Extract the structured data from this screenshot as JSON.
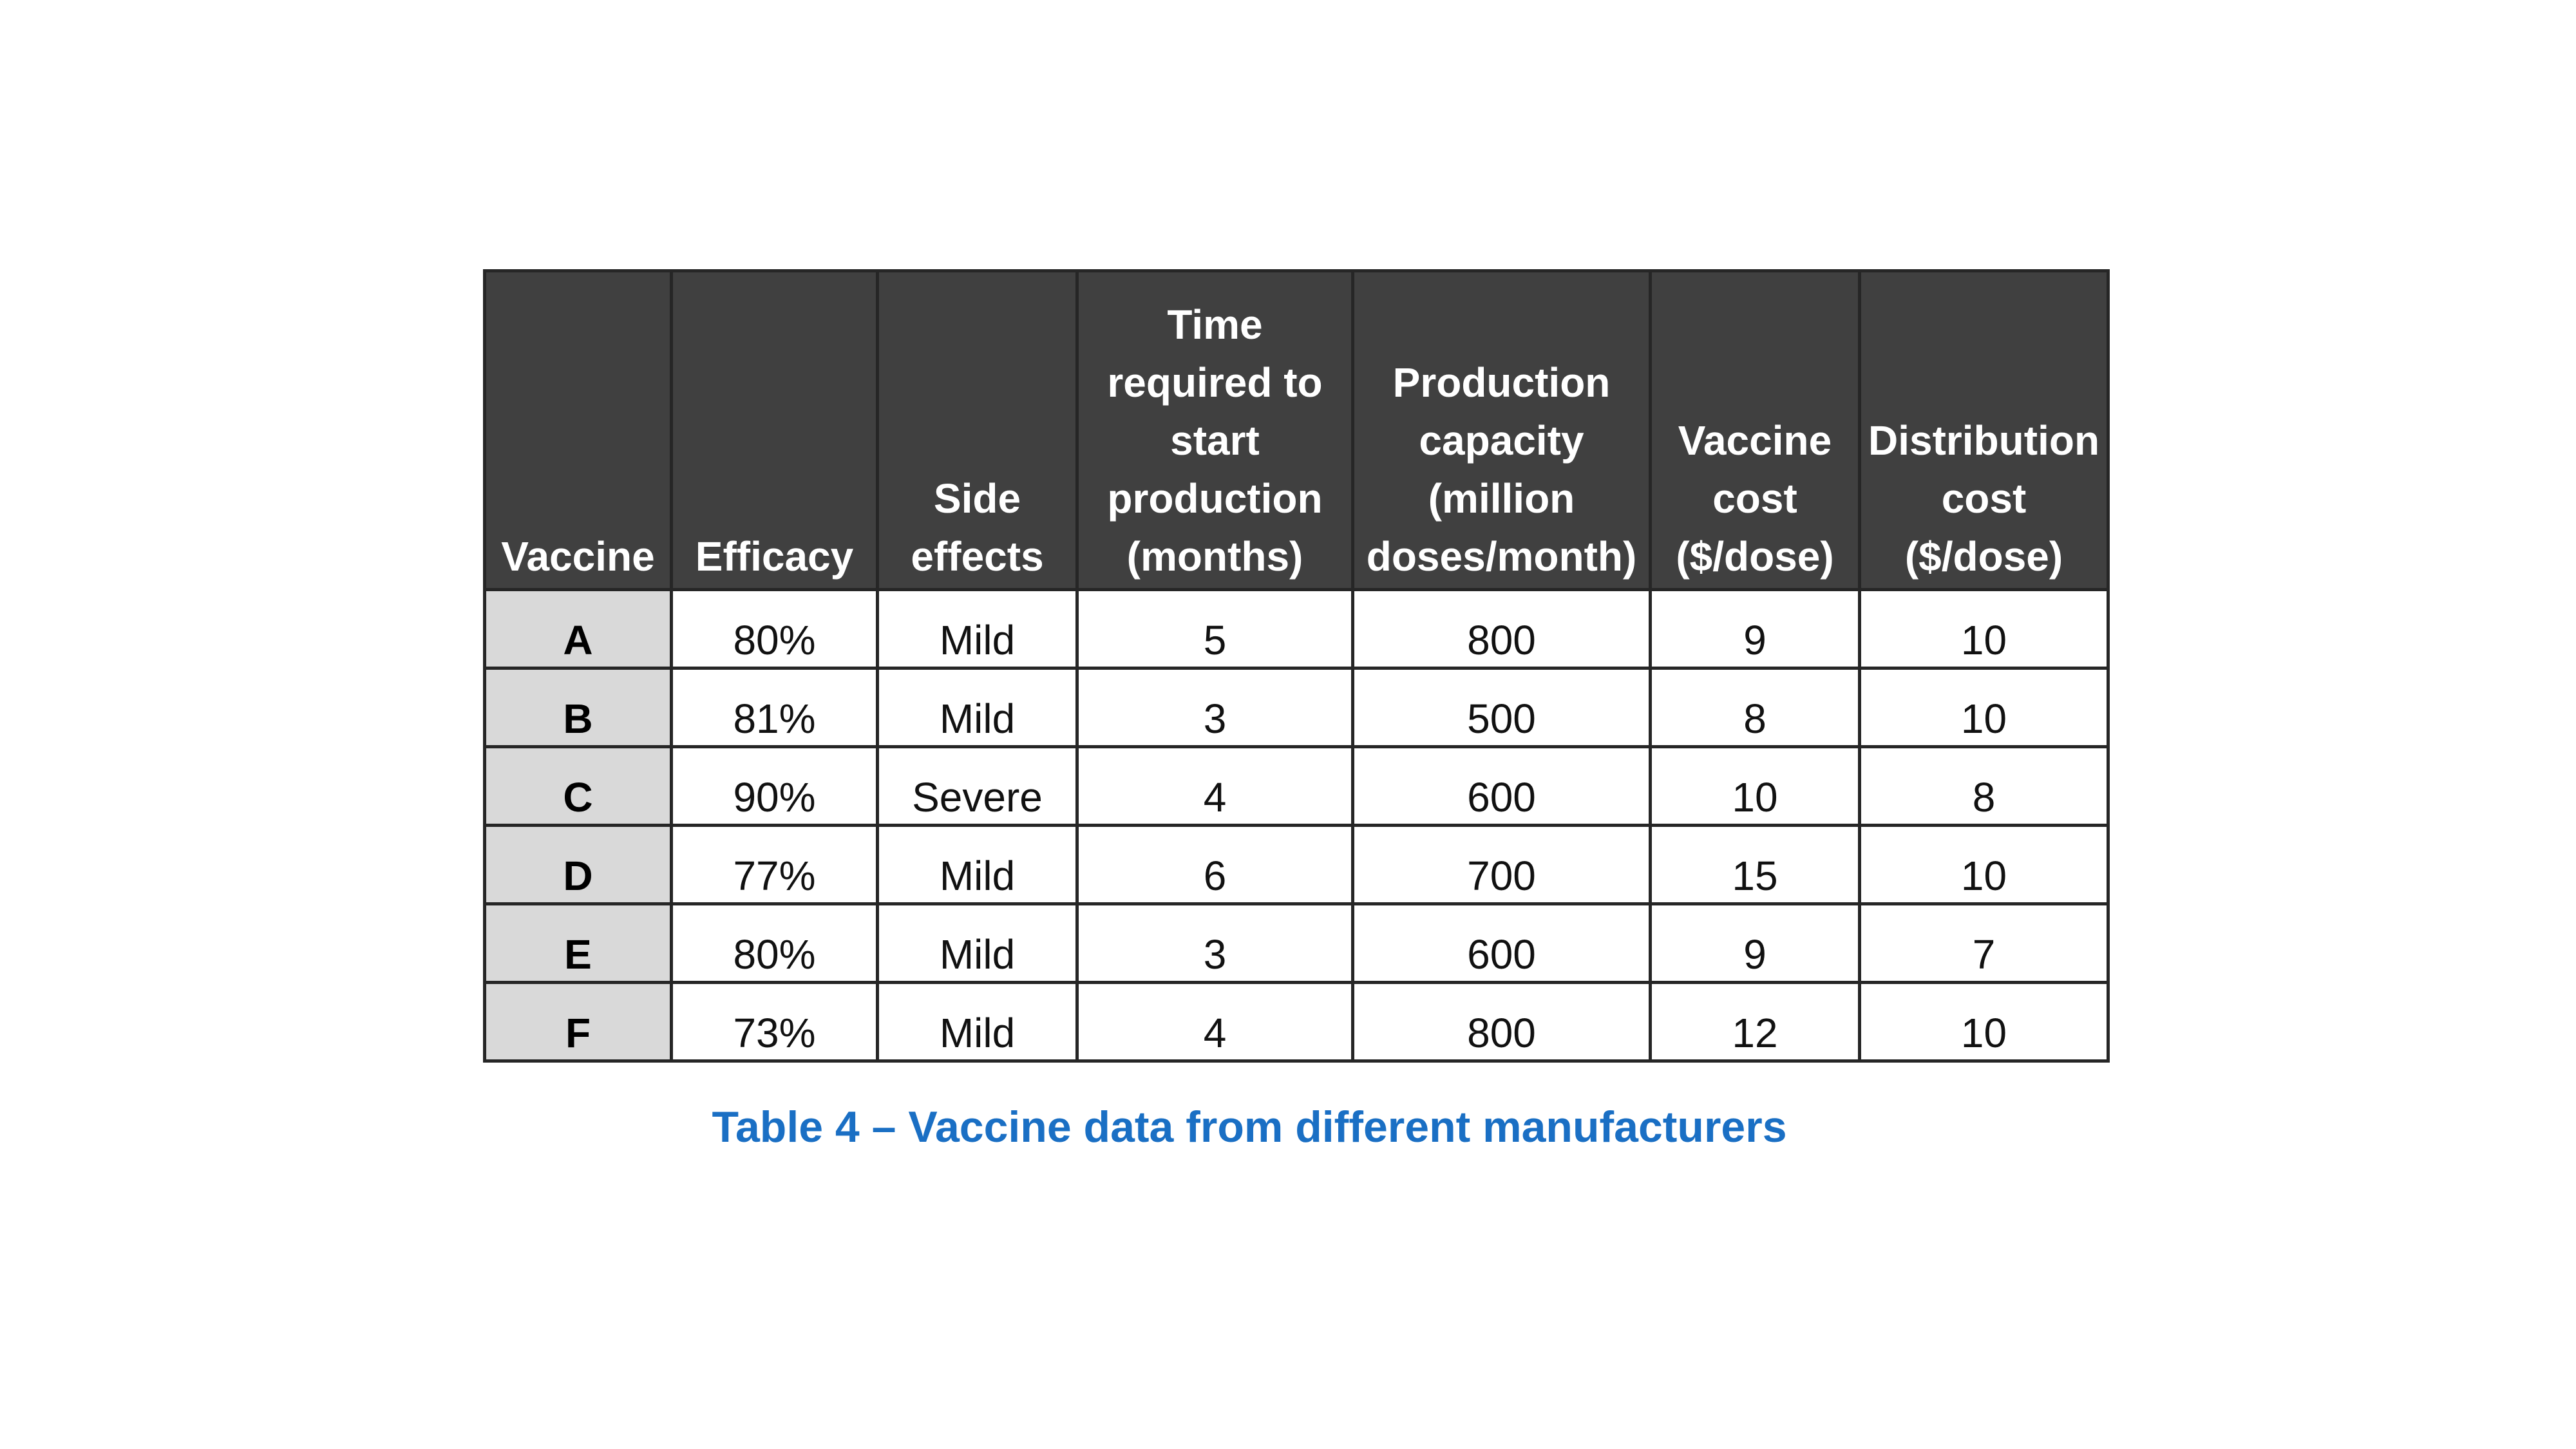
{
  "table": {
    "headers": [
      "Vaccine",
      "Efficacy",
      "Side\neffects",
      "Time\nrequired to\nstart\nproduction\n(months)",
      "Production\ncapacity\n(million\ndoses/month)",
      "Vaccine\ncost\n($/dose)",
      "Distribution\ncost\n($/dose)"
    ],
    "rows": [
      [
        "A",
        "80%",
        "Mild",
        "5",
        "800",
        "9",
        "10"
      ],
      [
        "B",
        "81%",
        "Mild",
        "3",
        "500",
        "8",
        "10"
      ],
      [
        "C",
        "90%",
        "Severe",
        "4",
        "600",
        "10",
        "8"
      ],
      [
        "D",
        "77%",
        "Mild",
        "6",
        "700",
        "15",
        "10"
      ],
      [
        "E",
        "80%",
        "Mild",
        "3",
        "600",
        "9",
        "7"
      ],
      [
        "F",
        "73%",
        "Mild",
        "4",
        "800",
        "12",
        "10"
      ]
    ]
  },
  "caption": "Table 4 – Vaccine data from different manufacturers",
  "colors": {
    "header_bg": "#404040",
    "row_label_bg": "#d9d9d9",
    "caption": "#1a6fc4"
  }
}
